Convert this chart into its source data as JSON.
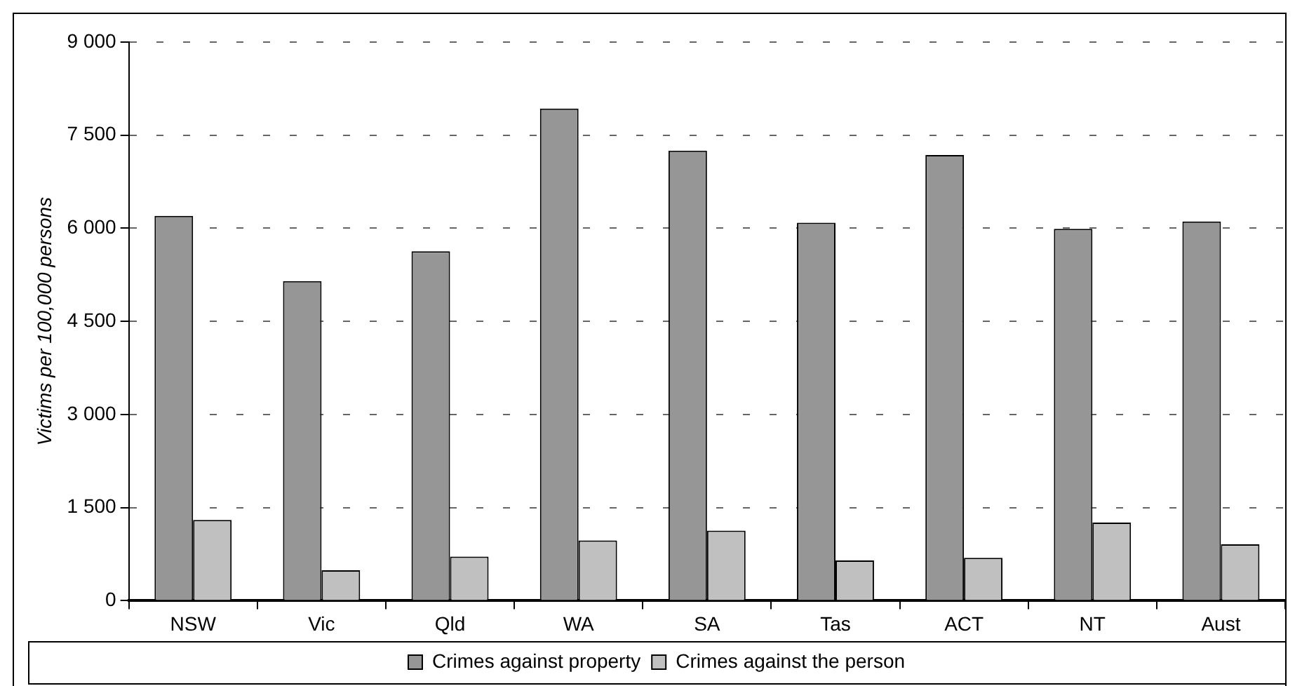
{
  "chart_data": {
    "type": "bar",
    "ylabel": "Victims per 100,000 persons",
    "categories": [
      "NSW",
      "Vic",
      "Qld",
      "WA",
      "SA",
      "Tas",
      "ACT",
      "NT",
      "Aust"
    ],
    "series": [
      {
        "name": "Crimes against property",
        "color": "#969696",
        "values": [
          6200,
          5150,
          5630,
          7930,
          7250,
          6090,
          7180,
          5990,
          6110
        ]
      },
      {
        "name": "Crimes against the person",
        "color": "#c0c0c0",
        "values": [
          1300,
          490,
          710,
          970,
          1130,
          650,
          690,
          1260,
          910
        ]
      }
    ],
    "ylim": [
      0,
      9000
    ],
    "yticks": [
      0,
      {
        "value": 1500,
        "label": "1 500"
      },
      {
        "value": 3000,
        "label": "3 000"
      },
      {
        "value": 4500,
        "label": "4 500"
      },
      {
        "value": 6000,
        "label": "6 000"
      },
      {
        "value": 7500,
        "label": "7 500"
      },
      {
        "value": 9000,
        "label": "9 000"
      }
    ],
    "grid": "y",
    "legend": "bottom"
  }
}
